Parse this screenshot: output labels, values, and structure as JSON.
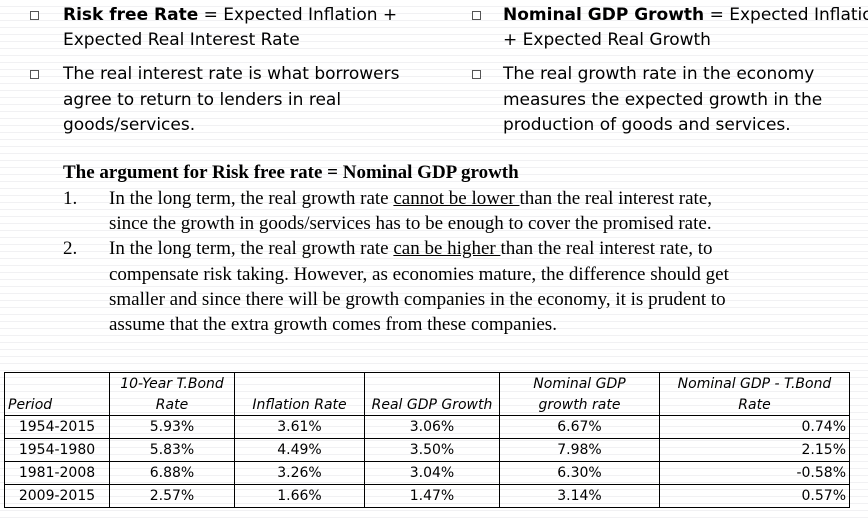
{
  "bullets": {
    "left": [
      {
        "bold": "Risk free Rate",
        "line1_rest": " = Expected Inflation +",
        "line2": "Expected Real Interest Rate"
      },
      {
        "line1": "The real interest rate is what borrowers",
        "line2": "agree to return to lenders in real",
        "line3": "goods/services."
      }
    ],
    "right": [
      {
        "bold": "Nominal GDP Growth",
        "line1_rest": " = Expected Inflation",
        "line2": "+ Expected Real Growth"
      },
      {
        "line1": "The real growth rate in the economy",
        "line2": "measures the expected growth in the",
        "line3": "production of goods and services."
      }
    ]
  },
  "argument": {
    "title": "The argument for Risk free rate = Nominal GDP growth",
    "items": [
      {
        "num": "1.",
        "l1a": "In the long term, the real growth rate ",
        "l1u": "cannot be lower ",
        "l1b": "than the real interest rate,",
        "l2": "since the growth in goods/services has to be enough to cover the promised rate."
      },
      {
        "num": "2.",
        "l1a": "In the long term, the real growth rate ",
        "l1u": "can be higher ",
        "l1b": "than the real interest rate, to",
        "l2": "compensate risk taking. However, as economies mature, the difference should get",
        "l3": "smaller and since there will be growth companies in the economy, it is prudent to",
        "l4": "assume that the extra growth comes from these companies."
      }
    ]
  },
  "table": {
    "headers_top": [
      "",
      "10-Year T.Bond",
      "",
      "",
      "Nominal GDP",
      "Nominal GDP - T.Bond"
    ],
    "headers_bottom": [
      "Period",
      "Rate",
      "Inflation Rate",
      "Real GDP Growth",
      "growth rate",
      "Rate"
    ],
    "rows": [
      [
        "1954-2015",
        "5.93%",
        "3.61%",
        "3.06%",
        "6.67%",
        "0.74%"
      ],
      [
        "1954-1980",
        "5.83%",
        "4.49%",
        "3.50%",
        "7.98%",
        "2.15%"
      ],
      [
        "1981-2008",
        "6.88%",
        "3.26%",
        "3.04%",
        "6.30%",
        "-0.58%"
      ],
      [
        "2009-2015",
        "2.57%",
        "1.66%",
        "1.47%",
        "3.14%",
        "0.57%"
      ]
    ]
  }
}
